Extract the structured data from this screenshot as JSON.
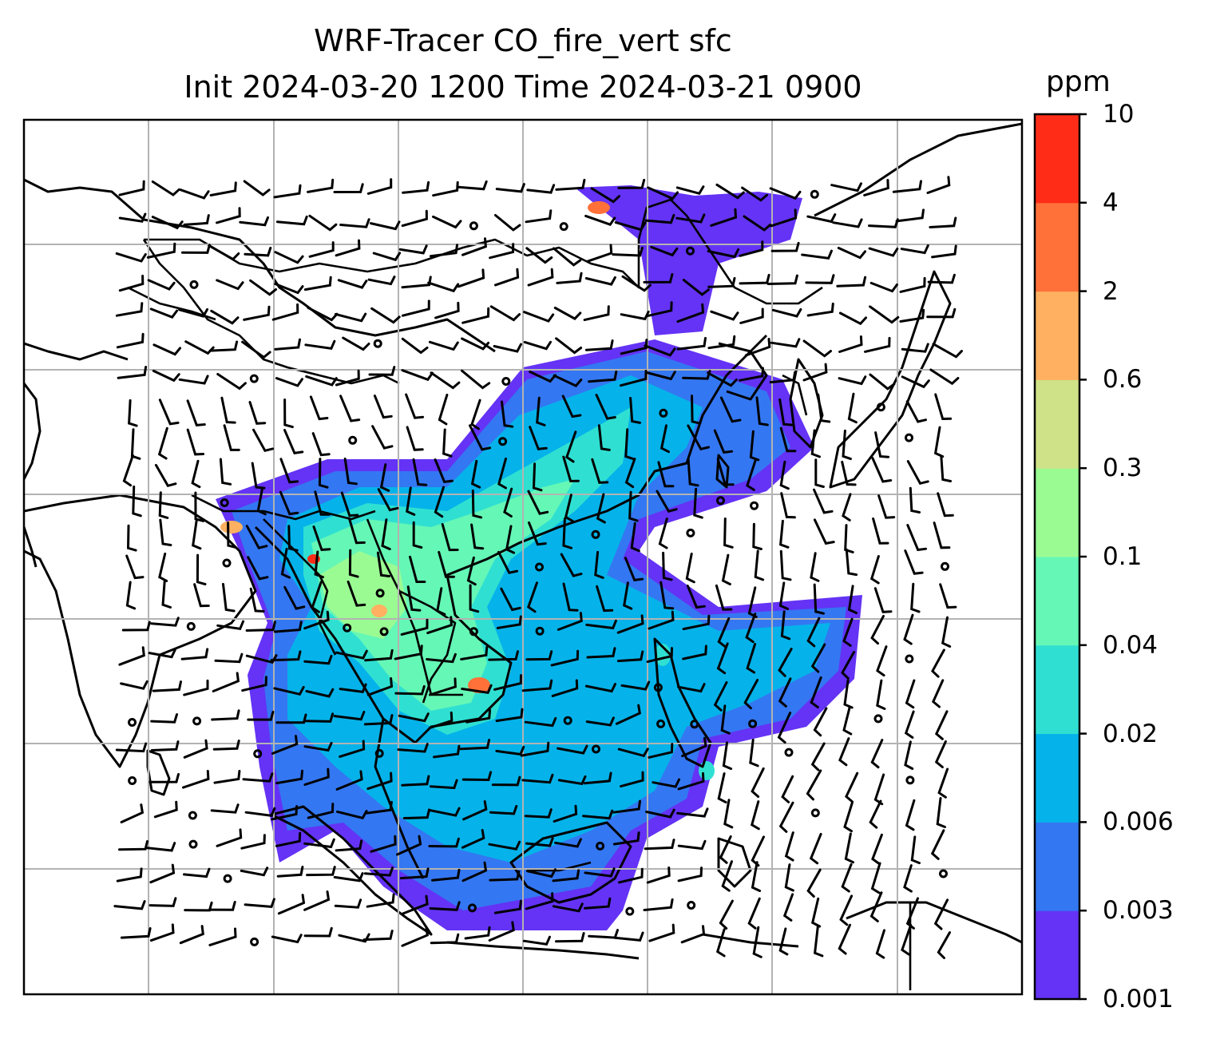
{
  "title": {
    "line1": "WRF-Tracer CO_fire_vert sfc",
    "line2": "Init 2024-03-20 1200 Time 2024-03-21 0900"
  },
  "colorbar": {
    "unit": "ppm",
    "ticks": [
      "0.001",
      "0.003",
      "0.006",
      "0.02",
      "0.04",
      "0.1",
      "0.3",
      "0.6",
      "2",
      "4",
      "10"
    ],
    "colors": [
      "#6433f5",
      "#3477f2",
      "#05b3ea",
      "#2fe0d2",
      "#65f7b6",
      "#9bfb93",
      "#cfe287",
      "#ffb060",
      "#ff7139",
      "#ff2d18"
    ]
  },
  "map": {
    "gridlines": true,
    "features": [
      "coastlines",
      "borders",
      "wind-barbs",
      "fire-co-tracer-plume"
    ]
  }
}
